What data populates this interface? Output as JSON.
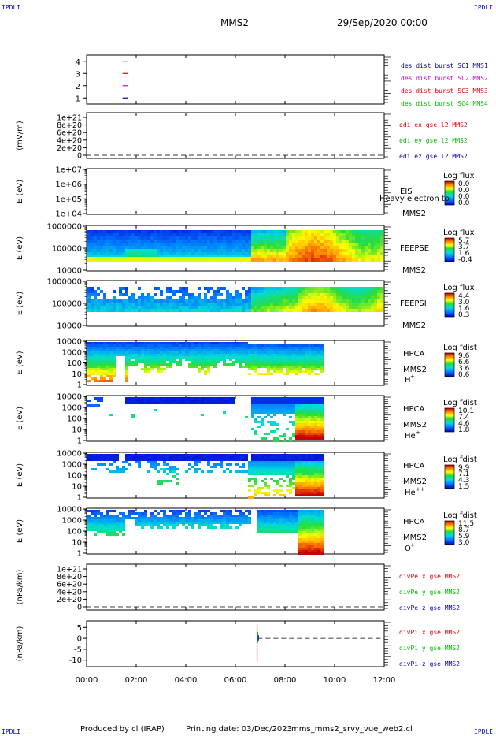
{
  "header": {
    "corner_left_top": "IPDLI",
    "corner_right_top": "IPDLI",
    "spacecraft": "MMS2",
    "date": "29/Sep/2020 00:00"
  },
  "footer": {
    "corner_left_bottom": "IPDLI",
    "corner_right_bottom": "IPDLI",
    "produced_by": "Produced by cl (IRAP)",
    "printing_date": "Printing date: 03/Dec/2023",
    "filename": "mms_mms2_srvy_vue_web2.cl"
  },
  "time_axis": {
    "ticks": [
      "00:00",
      "02:00",
      "04:00",
      "06:00",
      "08:00",
      "10:00",
      "12:00"
    ],
    "range_hours": [
      0,
      12
    ],
    "data_end_hours": 9.5
  },
  "colors": {
    "mms1": "#00008b",
    "mms2": "#cc00cc",
    "mms3": "#dd0000",
    "mms4": "#00bb00",
    "x": "#dd0000",
    "y": "#00bb00",
    "z": "#0000cc"
  },
  "chart_data": [
    {
      "type": "line",
      "id": "burst",
      "ylim": [
        0.5,
        4.5
      ],
      "yticks": [
        "1",
        "2",
        "3",
        "4"
      ],
      "legend": [
        "des dist burst SC1 MMS1",
        "des dist burst SC2 MMS2",
        "des dist burst SC3 MMS3",
        "des dist burst SC4 MMS4"
      ],
      "series": [
        {
          "level": 4,
          "x": [
            1.45,
            1.65
          ]
        },
        {
          "level": 3,
          "x": [
            1.45,
            1.65
          ]
        },
        {
          "level": 2,
          "x": [
            1.45,
            1.65
          ]
        },
        {
          "level": 1,
          "x": [
            1.45,
            1.65
          ]
        }
      ]
    },
    {
      "type": "line",
      "id": "edi",
      "ylabel": "(mV/m)",
      "yticks": [
        "0",
        "2e+20",
        "4e+20",
        "6e+20",
        "8e+20",
        "1e+21"
      ],
      "legend": [
        "edi ex gse l2 MMS2",
        "edi ey gse l2 MMS2",
        "edi ez gse l2 MMS2"
      ]
    },
    {
      "type": "heatmap",
      "id": "eis",
      "ylabel": "E (eV)",
      "yticks": [
        "1e+04",
        "1e+05",
        "1e+06",
        "1e+07"
      ],
      "instrument": [
        "EIS",
        "MMS2"
      ],
      "overlay_label": "Heavy electron to",
      "colorbar_title": "Log flux",
      "colorbar_ticks": [
        "0.0",
        "0.0",
        "0.0",
        "0.0"
      ]
    },
    {
      "type": "heatmap",
      "id": "feepse",
      "ylabel": "E (eV)",
      "yticks": [
        "10000",
        "100000",
        "1000000"
      ],
      "instrument": [
        "FEEPSE",
        "MMS2"
      ],
      "colorbar_title": "Log flux",
      "colorbar_ticks": [
        "5.7",
        "3.7",
        "1.6",
        "-0.4"
      ],
      "zrange": [
        -0.4,
        5.7
      ]
    },
    {
      "type": "heatmap",
      "id": "feepsi",
      "ylabel": "E (eV)",
      "yticks": [
        "10000",
        "100000",
        "1000000"
      ],
      "instrument": [
        "FEEPSI",
        "MMS2"
      ],
      "colorbar_title": "Log flux",
      "colorbar_ticks": [
        "4.4",
        "3.0",
        "1.6",
        "0.3"
      ],
      "zrange": [
        0.3,
        4.4
      ]
    },
    {
      "type": "heatmap",
      "id": "hpca_h",
      "ylabel": "E (eV)",
      "yticks": [
        "1",
        "10",
        "100",
        "1000",
        "10000"
      ],
      "instrument": [
        "HPCA",
        "MMS2",
        "H",
        "+"
      ],
      "colorbar_title": "Log fdist",
      "colorbar_ticks": [
        "9.6",
        "6.6",
        "3.6",
        "0.6"
      ],
      "zrange": [
        0.6,
        9.6
      ]
    },
    {
      "type": "heatmap",
      "id": "hpca_he1",
      "ylabel": "E (eV)",
      "yticks": [
        "1",
        "10",
        "100",
        "1000",
        "10000"
      ],
      "instrument": [
        "HPCA",
        "MMS2",
        "He",
        "+"
      ],
      "colorbar_title": "Log fdist",
      "colorbar_ticks": [
        "10.1",
        "7.4",
        "4.6",
        "1.8"
      ],
      "zrange": [
        1.8,
        10.1
      ]
    },
    {
      "type": "heatmap",
      "id": "hpca_he2",
      "ylabel": "E (eV)",
      "yticks": [
        "1",
        "10",
        "100",
        "1000",
        "10000"
      ],
      "instrument": [
        "HPCA",
        "MMS2",
        "He",
        "++"
      ],
      "colorbar_title": "Log fdist",
      "colorbar_ticks": [
        "9.9",
        "7.1",
        "4.3",
        "1.5"
      ],
      "zrange": [
        1.5,
        9.9
      ]
    },
    {
      "type": "heatmap",
      "id": "hpca_o",
      "ylabel": "E (eV)",
      "yticks": [
        "1",
        "10",
        "100",
        "1000",
        "10000"
      ],
      "instrument": [
        "HPCA",
        "MMS2",
        "O",
        "+"
      ],
      "colorbar_title": "Log fdist",
      "colorbar_ticks": [
        "11.5",
        "8.7",
        "5.9",
        "3.0"
      ],
      "zrange": [
        3.0,
        11.5
      ]
    },
    {
      "type": "line",
      "id": "divpe",
      "ylabel": "(nPa/km)",
      "yticks": [
        "0",
        "2e+20",
        "4e+20",
        "6e+20",
        "8e+20",
        "1e+21"
      ],
      "legend": [
        "divPe x gse MMS2",
        "divPe y gse MMS2",
        "divPe z gse MMS2"
      ]
    },
    {
      "type": "line",
      "id": "divpi",
      "ylabel": "(nPa/km)",
      "yticks": [
        "-10",
        "-5",
        "0",
        "5"
      ],
      "ylim": [
        -13,
        8
      ],
      "legend": [
        "divPi x gse MMS2",
        "divPi y gse MMS2",
        "divPi z gse MMS2"
      ],
      "spike_hours": 6.9,
      "series": [
        {
          "component": "x",
          "range": [
            -10.5,
            6.5
          ]
        },
        {
          "component": "y",
          "range": [
            -2,
            3
          ]
        },
        {
          "component": "z",
          "range": [
            -1,
            1.5
          ]
        }
      ]
    }
  ]
}
